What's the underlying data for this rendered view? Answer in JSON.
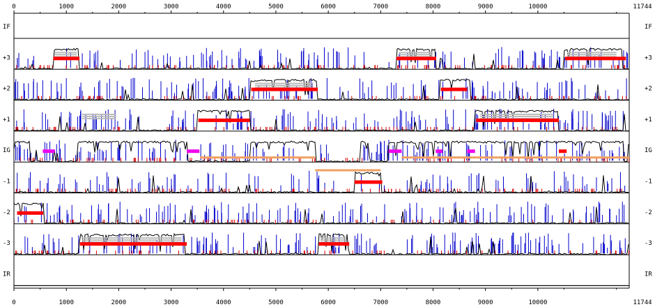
{
  "chart_data": {
    "type": "sequence-frame-plot",
    "x_max_label": "11744",
    "xlim": [
      0,
      11744
    ],
    "x_ticks": [
      0,
      1000,
      2000,
      3000,
      4000,
      5000,
      6000,
      7000,
      8000,
      9000,
      10000
    ],
    "tracks": [
      {
        "label": "IF",
        "signal": [],
        "red_bars": [],
        "gray_bars": [],
        "magenta_bars": [],
        "orange_bars": []
      },
      {
        "label": "+3",
        "signal": [
          [
            750,
            1230
          ],
          [
            7300,
            8040
          ],
          [
            10500,
            11600
          ]
        ],
        "red_bars": [
          [
            750,
            1250
          ],
          [
            7300,
            8060
          ],
          [
            10520,
            11680
          ]
        ],
        "gray_bars": [
          [
            780,
            1200
          ],
          [
            7350,
            8000
          ],
          [
            10560,
            11500
          ]
        ],
        "magenta_bars": [],
        "orange_bars": []
      },
      {
        "label": "+2",
        "signal": [
          [
            4500,
            5780
          ],
          [
            8130,
            8700
          ]
        ],
        "red_bars": [
          [
            4530,
            5800
          ],
          [
            8150,
            8650
          ]
        ],
        "gray_bars": [
          [
            4600,
            5700
          ]
        ],
        "magenta_bars": [],
        "orange_bars": []
      },
      {
        "label": "+1",
        "signal": [
          [
            3500,
            4500
          ],
          [
            8800,
            10400
          ]
        ],
        "red_bars": [
          [
            3520,
            4500
          ],
          [
            8820,
            10400
          ]
        ],
        "gray_bars": [
          [
            1300,
            1950
          ],
          [
            8900,
            10300
          ]
        ],
        "magenta_bars": [],
        "orange_bars": []
      },
      {
        "label": "IG",
        "signal": [
          [
            0,
            300
          ],
          [
            1220,
            3300
          ],
          [
            4500,
            5750
          ],
          [
            6600,
            6800
          ],
          [
            7150,
            11650
          ]
        ],
        "red_bars": [
          [
            10400,
            10550
          ]
        ],
        "gray_bars": [],
        "magenta_bars": [
          [
            550,
            780
          ],
          [
            3300,
            3540
          ],
          [
            7150,
            7400
          ],
          [
            8050,
            8180
          ],
          [
            8650,
            8800
          ]
        ],
        "orange_bars": [
          [
            3550,
            5750
          ],
          [
            7400,
            11744
          ]
        ]
      },
      {
        "label": "-1",
        "signal": [
          [
            6500,
            7000
          ]
        ],
        "red_bars": [
          [
            6500,
            7030
          ]
        ],
        "gray_bars": [],
        "magenta_bars": [],
        "orange_bars": [
          [
            5750,
            7000
          ]
        ]
      },
      {
        "label": "-2",
        "signal": [
          [
            0,
            560
          ]
        ],
        "red_bars": [
          [
            60,
            560
          ]
        ],
        "gray_bars": [],
        "magenta_bars": [],
        "orange_bars": []
      },
      {
        "label": "-3",
        "signal": [
          [
            1250,
            3250
          ],
          [
            5800,
            6400
          ]
        ],
        "red_bars": [
          [
            1260,
            3300
          ],
          [
            5820,
            6400
          ]
        ],
        "gray_bars": [
          [
            1300,
            3200
          ],
          [
            5850,
            6350
          ]
        ],
        "magenta_bars": [],
        "orange_bars": []
      },
      {
        "label": "IR",
        "signal": [],
        "red_bars": [],
        "gray_bars": [],
        "magenta_bars": [],
        "orange_bars": []
      }
    ],
    "colors": {
      "signal": "#000000",
      "blue_ticks": "#0000cc",
      "red_ticks": "#dd0000",
      "red_bar": "#ff0000",
      "gray_bar": "#bbbbbb",
      "magenta_bar": "#ee00ee",
      "orange_bar": "#f0a060",
      "axis": "#000000"
    }
  }
}
